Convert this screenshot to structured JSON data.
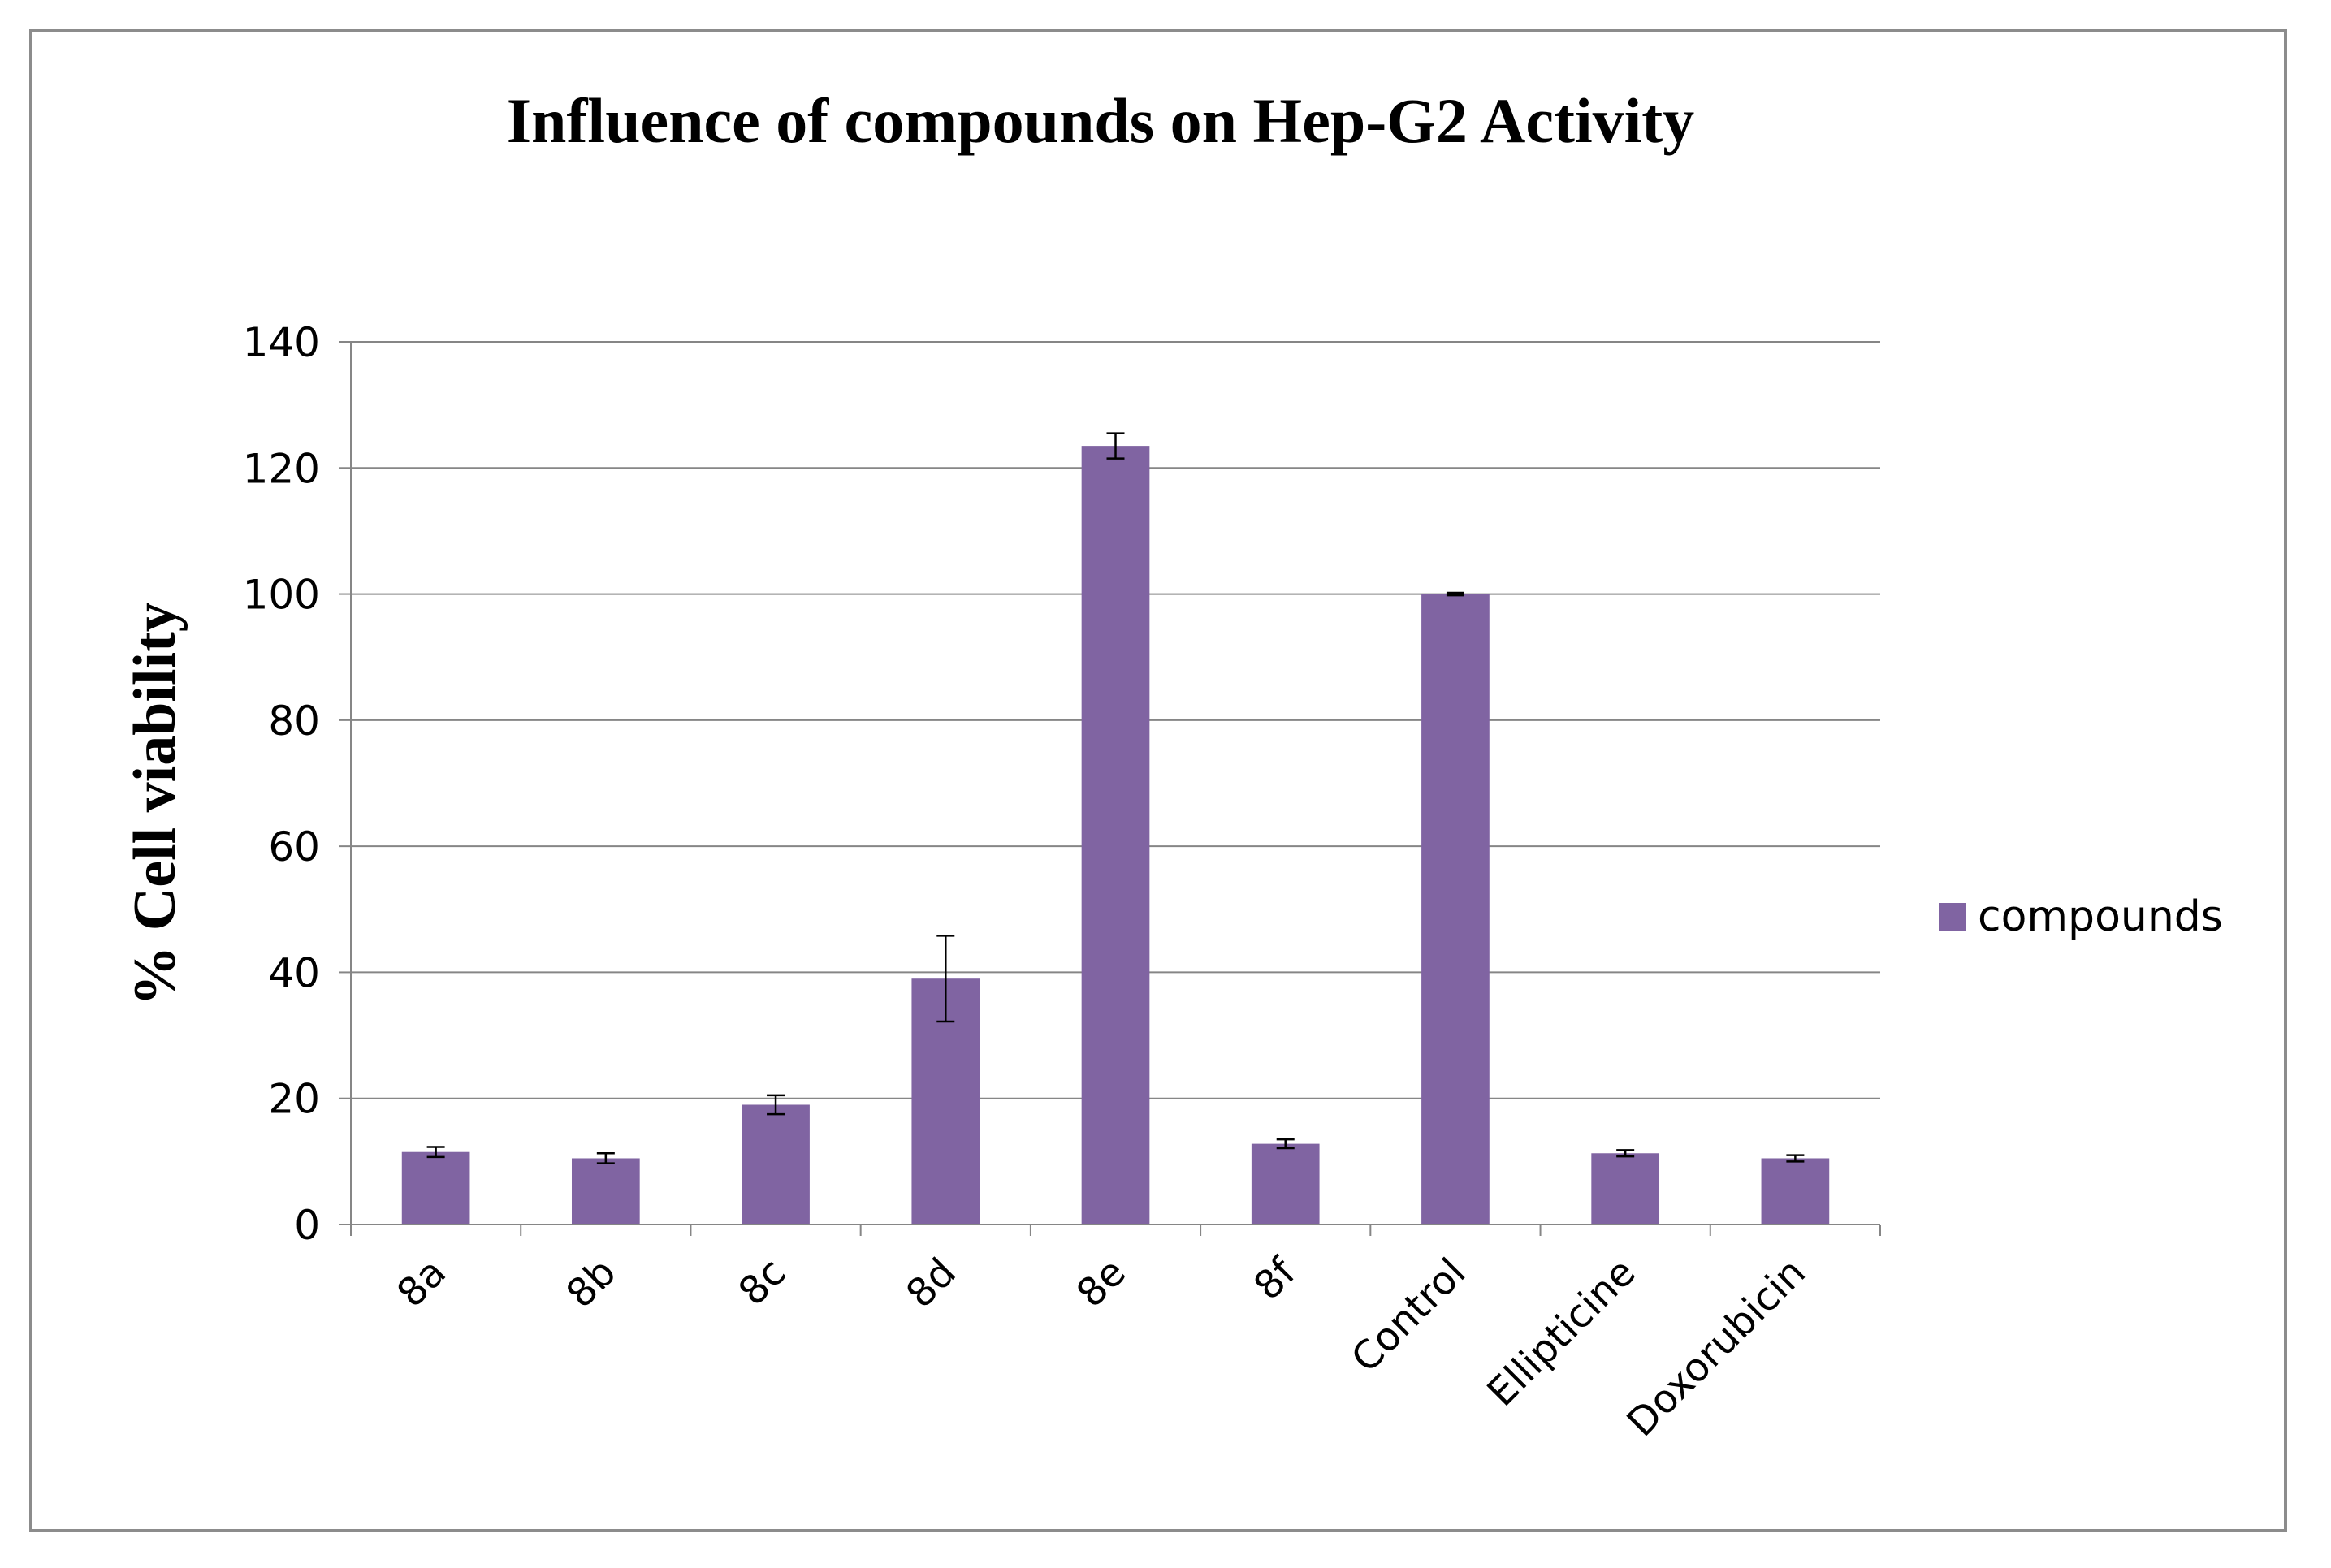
{
  "chart_data": {
    "type": "bar",
    "title": "Influence of compounds on Hep-G2 Activity",
    "xlabel": "",
    "ylabel": "% Cell viability",
    "ylim": [
      0,
      140
    ],
    "yticks": [
      0,
      20,
      40,
      60,
      80,
      100,
      120,
      140
    ],
    "grid": true,
    "legend_position": "right",
    "categories": [
      "8a",
      "8b",
      "8c",
      "8d",
      "8e",
      "8f",
      "Control",
      "Ellipticine",
      "Doxorubicin"
    ],
    "series": [
      {
        "name": "compounds",
        "color": "#8064a2",
        "values": [
          11.5,
          10.5,
          19,
          39,
          123.5,
          12.8,
          100,
          11.3,
          10.5
        ],
        "errors": [
          0.8,
          0.8,
          1.5,
          6.8,
          2.0,
          0.7,
          0.2,
          0.5,
          0.5
        ]
      }
    ]
  }
}
